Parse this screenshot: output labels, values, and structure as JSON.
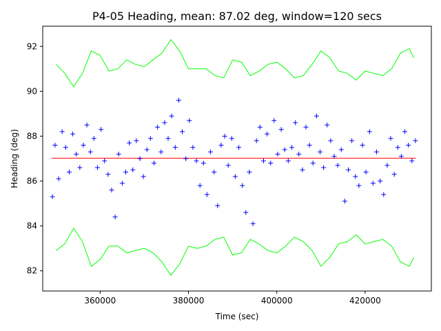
{
  "colors": {
    "background": "#ffffff",
    "frame": "#000000",
    "scatter": "#0000ff",
    "mean_line": "#ff0000",
    "envelope": "#00ff00"
  },
  "chart_data": {
    "type": "scatter",
    "title": "P4-05 Heading, mean: 87.02 deg, window=120 secs",
    "xlabel": "Time (sec)",
    "ylabel": "Heading (deg)",
    "xlim": [
      347000,
      435000
    ],
    "ylim": [
      81.1,
      92.9
    ],
    "xticks": [
      360000,
      380000,
      400000,
      420000
    ],
    "xtick_labels": [
      "360000",
      "380000",
      "400000",
      "420000"
    ],
    "yticks": [
      82,
      84,
      86,
      88,
      90,
      92
    ],
    "ytick_labels": [
      "82",
      "84",
      "86",
      "88",
      "90",
      "92"
    ],
    "grid": false,
    "legend": "none",
    "marker": "+",
    "mean": 87.02,
    "mean_line_x": [
      349000,
      431500
    ],
    "upper_envelope": {
      "x": [
        350000,
        352000,
        354000,
        356000,
        358000,
        360000,
        362000,
        364000,
        366000,
        368000,
        370000,
        372000,
        374000,
        376000,
        378000,
        380000,
        382000,
        384000,
        386000,
        388000,
        390000,
        392000,
        394000,
        396000,
        398000,
        400000,
        402000,
        404000,
        406000,
        408000,
        410000,
        412000,
        414000,
        416000,
        418000,
        420000,
        422000,
        424000,
        426000,
        428000,
        430000,
        431000
      ],
      "y": [
        91.2,
        90.8,
        90.2,
        90.8,
        91.8,
        91.6,
        90.9,
        91.0,
        91.4,
        91.2,
        91.1,
        91.4,
        91.7,
        92.3,
        91.8,
        91.0,
        91.0,
        91.0,
        90.7,
        90.6,
        91.4,
        91.3,
        90.7,
        90.9,
        91.2,
        91.3,
        91.0,
        90.6,
        90.7,
        91.2,
        91.8,
        91.5,
        90.9,
        90.8,
        90.5,
        90.9,
        90.8,
        90.7,
        91.0,
        91.7,
        91.9,
        91.5
      ]
    },
    "lower_envelope": {
      "x": [
        350000,
        352000,
        354000,
        356000,
        358000,
        360000,
        362000,
        364000,
        366000,
        368000,
        370000,
        372000,
        374000,
        376000,
        378000,
        380000,
        382000,
        384000,
        386000,
        388000,
        390000,
        392000,
        394000,
        396000,
        398000,
        400000,
        402000,
        404000,
        406000,
        408000,
        410000,
        412000,
        414000,
        416000,
        418000,
        420000,
        422000,
        424000,
        426000,
        428000,
        430000,
        431000
      ],
      "y": [
        82.9,
        83.2,
        83.9,
        83.3,
        82.2,
        82.5,
        83.1,
        83.1,
        82.8,
        82.9,
        83.0,
        82.8,
        82.4,
        81.8,
        82.3,
        83.1,
        83.0,
        83.1,
        83.4,
        83.5,
        82.7,
        82.8,
        83.4,
        83.2,
        82.9,
        82.8,
        83.1,
        83.5,
        83.3,
        82.9,
        82.2,
        82.6,
        83.2,
        83.3,
        83.6,
        83.2,
        83.3,
        83.4,
        83.1,
        82.4,
        82.2,
        82.6
      ]
    },
    "points": {
      "x": [
        349200,
        349800,
        350600,
        351400,
        352200,
        353000,
        353800,
        354600,
        355400,
        356200,
        357000,
        357800,
        358600,
        359400,
        360200,
        361000,
        361800,
        362600,
        363400,
        364200,
        365000,
        365800,
        366600,
        367400,
        368200,
        369000,
        369800,
        370600,
        371400,
        372200,
        373000,
        373800,
        374600,
        375400,
        376200,
        377000,
        377800,
        378600,
        379400,
        380200,
        381000,
        381800,
        382600,
        383400,
        384200,
        385000,
        385800,
        386600,
        387400,
        388200,
        389000,
        389800,
        390600,
        391400,
        392200,
        393000,
        393800,
        394600,
        395400,
        396200,
        397000,
        397800,
        398600,
        399400,
        400200,
        401000,
        401800,
        402600,
        403400,
        404200,
        405000,
        405800,
        406600,
        407400,
        408200,
        409000,
        409800,
        410600,
        411400,
        412200,
        413000,
        413800,
        414600,
        415400,
        416200,
        417000,
        417800,
        418600,
        419400,
        420200,
        421000,
        421800,
        422600,
        423400,
        424200,
        425000,
        425800,
        426600,
        427400,
        428200,
        429000,
        429800,
        430600,
        431400
      ],
      "y": [
        85.3,
        87.6,
        86.1,
        88.2,
        87.5,
        86.4,
        88.1,
        87.2,
        86.6,
        87.6,
        88.5,
        87.3,
        87.9,
        86.6,
        88.3,
        86.9,
        86.3,
        85.6,
        84.4,
        87.2,
        85.9,
        86.4,
        87.7,
        86.5,
        87.8,
        87.0,
        86.2,
        87.4,
        87.9,
        86.8,
        88.4,
        87.3,
        88.6,
        87.9,
        88.9,
        87.5,
        89.6,
        88.2,
        87.0,
        88.7,
        87.5,
        86.9,
        85.8,
        86.8,
        85.4,
        87.3,
        86.4,
        84.9,
        87.6,
        88.0,
        86.7,
        87.9,
        86.2,
        87.5,
        85.8,
        84.6,
        86.4,
        84.1,
        87.8,
        88.4,
        86.9,
        88.1,
        86.8,
        88.7,
        87.2,
        88.3,
        87.4,
        86.9,
        87.5,
        88.6,
        87.2,
        86.5,
        88.4,
        87.6,
        86.8,
        88.9,
        87.3,
        86.6,
        88.5,
        87.8,
        87.1,
        86.7,
        87.4,
        85.1,
        86.5,
        87.8,
        86.2,
        85.8,
        87.6,
        86.4,
        88.2,
        85.9,
        87.3,
        86.0,
        85.4,
        86.7,
        87.9,
        86.3,
        87.5,
        87.1,
        88.2,
        87.6,
        86.9,
        87.8
      ]
    }
  }
}
